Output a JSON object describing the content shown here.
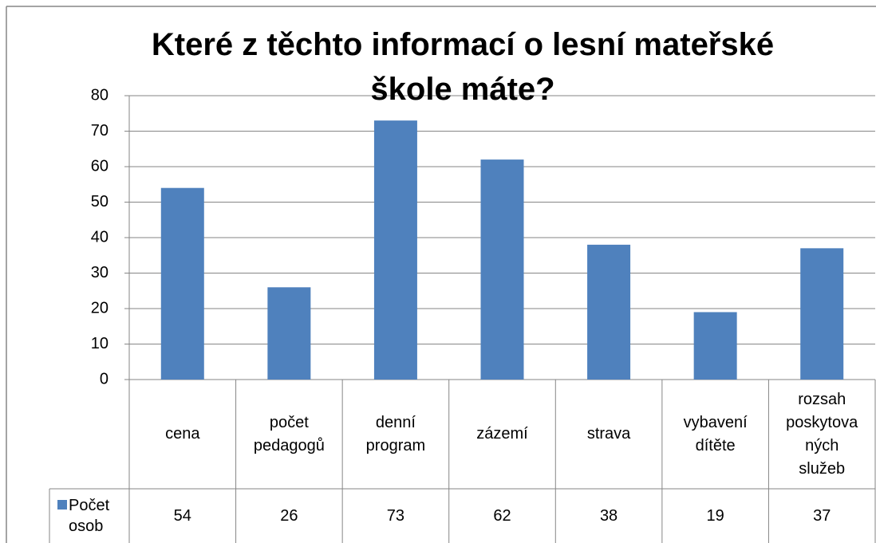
{
  "chart_data": {
    "type": "bar",
    "title": "Které z těchto informací o lesní mateřské škole máte?",
    "categories": [
      "cena",
      "počet\npedagogů",
      "denní\nprogram",
      "zázemí",
      "strava",
      "vybavení\ndítěte",
      "rozsah\nposkytova\nných\nslužeb"
    ],
    "series": [
      {
        "name": "Počet osob",
        "color": "#4f81bd",
        "values": [
          54,
          26,
          73,
          62,
          38,
          19,
          37
        ]
      }
    ],
    "ylim": [
      0,
      80
    ],
    "yticks": [
      0,
      10,
      20,
      30,
      40,
      50,
      60,
      70,
      80
    ],
    "grid": true
  }
}
